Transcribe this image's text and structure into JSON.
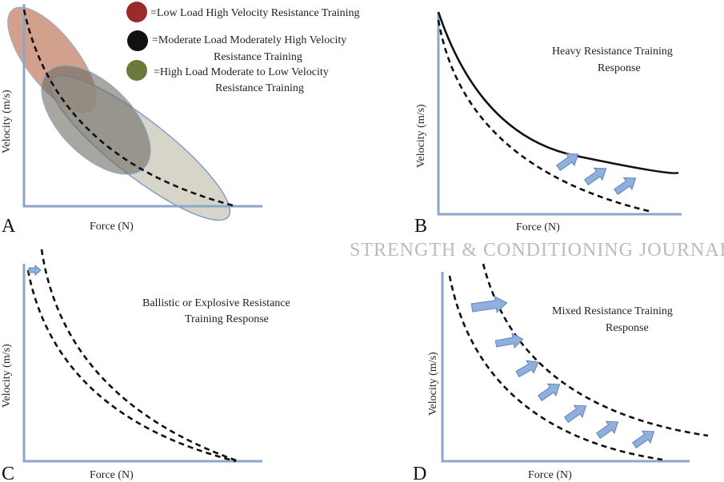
{
  "panels": {
    "a": {
      "letter": "A",
      "xlabel": "Force (N)",
      "ylabel": "Velocity (m/s)",
      "legend": [
        {
          "color": "#9b2a2a",
          "line1": "=Low Load High Velocity Resistance Training",
          "line2": ""
        },
        {
          "color": "#111111",
          "line1": "=Moderate Load Moderately High Velocity",
          "line2": "Resistance Training"
        },
        {
          "color": "#6b7a3a",
          "line1": "=High Load Moderate to Low Velocity",
          "line2": "Resistance Training"
        }
      ]
    },
    "b": {
      "letter": "B",
      "xlabel": "Force (N)",
      "ylabel": "Velocity (m/s)",
      "title1": "Heavy Resistance Training",
      "title2": "Response"
    },
    "c": {
      "letter": "C",
      "xlabel": "Force (N)",
      "ylabel": "Velocity (m/s)",
      "title1": "Ballistic or Explosive Resistance",
      "title2": "Training Response"
    },
    "d": {
      "letter": "D",
      "xlabel": "Force (N)",
      "ylabel": "Velocity (m/s)",
      "title1": "Mixed Resistance Training",
      "title2": "Response"
    }
  },
  "watermark": "STRENGTH & CONDITIONING JOURNAL",
  "colors": {
    "axis": "#8aa6c8",
    "arrow": "#8fb0dc"
  }
}
